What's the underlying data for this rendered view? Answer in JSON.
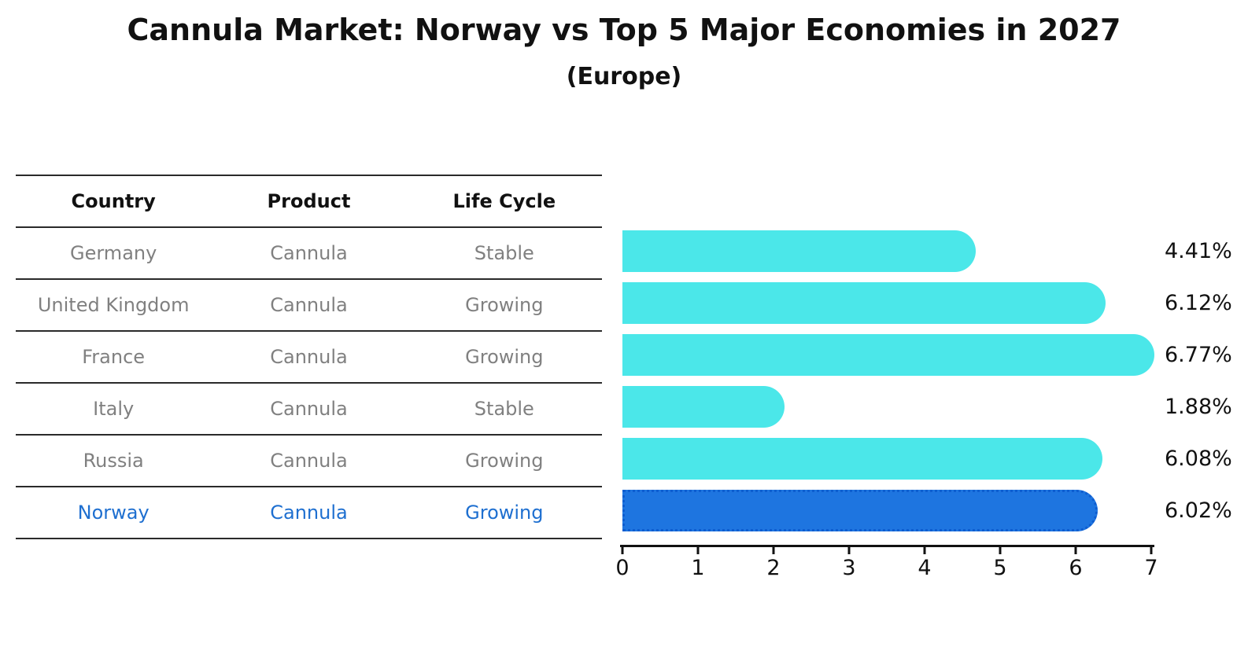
{
  "title": "Cannula Market: Norway vs Top 5 Major Economies in 2027",
  "subtitle": "(Europe)",
  "table": {
    "headers": [
      "Country",
      "Product",
      "Life Cycle"
    ],
    "rows": [
      {
        "country": "Germany",
        "product": "Cannula",
        "life_cycle": "Stable",
        "highlight": false
      },
      {
        "country": "United Kingdom",
        "product": "Cannula",
        "life_cycle": "Growing",
        "highlight": false
      },
      {
        "country": "France",
        "product": "Cannula",
        "life_cycle": "Growing",
        "highlight": false
      },
      {
        "country": "Italy",
        "product": "Cannula",
        "life_cycle": "Stable",
        "highlight": false
      },
      {
        "country": "Russia",
        "product": "Cannula",
        "life_cycle": "Growing",
        "highlight": false
      },
      {
        "country": "Norway",
        "product": "Cannula",
        "life_cycle": "Growing",
        "highlight": true
      }
    ]
  },
  "chart_data": {
    "type": "bar",
    "orientation": "horizontal",
    "title": "Cannula Market: Norway vs Top 5 Major Economies in 2027",
    "subtitle": "(Europe)",
    "categories": [
      "Germany",
      "United Kingdom",
      "France",
      "Italy",
      "Russia",
      "Norway"
    ],
    "values": [
      4.41,
      6.12,
      6.77,
      1.88,
      6.08,
      6.02
    ],
    "value_labels": [
      "4.41%",
      "6.12%",
      "6.77%",
      "1.88%",
      "6.08%",
      "6.02%"
    ],
    "unit": "percent",
    "xlim": [
      0,
      7
    ],
    "x_ticks": [
      0,
      1,
      2,
      3,
      4,
      5,
      6,
      7
    ],
    "grid": false,
    "legend": false,
    "highlight_index": 5
  },
  "colors": {
    "bar_default": "#4BE7E9",
    "bar_highlight": "#1E75E0",
    "highlight_text": "#1E6FD0",
    "cell_text": "#808080",
    "header_text": "#111111",
    "axis": "#111111"
  }
}
